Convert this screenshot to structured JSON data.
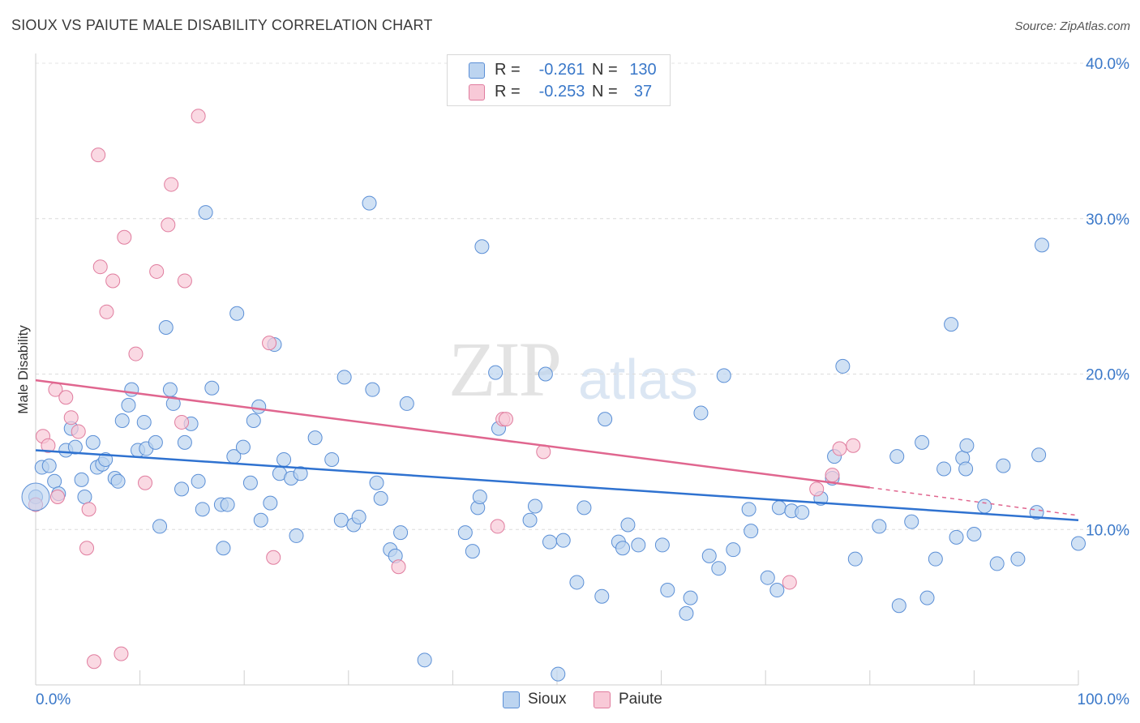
{
  "title": "SIOUX VS PAIUTE MALE DISABILITY CORRELATION CHART",
  "source": "Source: ZipAtlas.com",
  "watermark": {
    "zip": "ZIP",
    "atlas": "atlas"
  },
  "legend": {
    "rows": [
      {
        "r_label": "R =",
        "r_value": "-0.261",
        "n_label": "N =",
        "n_value": "130",
        "fill": "#bcd4f0",
        "stroke": "#5b8fd6"
      },
      {
        "r_label": "R =",
        "r_value": "-0.253",
        "n_label": "N =",
        "n_value": "37",
        "fill": "#f8c9d7",
        "stroke": "#e07c9e"
      }
    ]
  },
  "bottom_legend": [
    {
      "label": "Sioux",
      "fill": "#bcd4f0",
      "stroke": "#5b8fd6"
    },
    {
      "label": "Paiute",
      "fill": "#f8c9d7",
      "stroke": "#e07c9e"
    }
  ],
  "chart_data": {
    "type": "scatter",
    "title": "SIOUX VS PAIUTE MALE DISABILITY CORRELATION CHART",
    "xlabel": "",
    "ylabel": "Male Disability",
    "xlim": [
      0,
      100
    ],
    "ylim": [
      0,
      40
    ],
    "x_tick_labels": [
      "0.0%",
      "100.0%"
    ],
    "y_ticks": [
      10,
      20,
      30,
      40
    ],
    "y_tick_labels": [
      "10.0%",
      "20.0%",
      "30.0%",
      "40.0%"
    ],
    "grid": true,
    "series": [
      {
        "name": "Sioux",
        "color": "#5b8fd6",
        "fill": "#bcd4f0",
        "line_color": "#2f72d0",
        "trend": {
          "x0": 0,
          "y0": 15.1,
          "x1": 100,
          "y1": 10.6
        },
        "points": [
          [
            0.0,
            12.1
          ],
          [
            0.6,
            14.0
          ],
          [
            1.3,
            14.1
          ],
          [
            1.8,
            13.1
          ],
          [
            2.2,
            12.3
          ],
          [
            2.9,
            15.1
          ],
          [
            3.4,
            16.5
          ],
          [
            3.8,
            15.3
          ],
          [
            4.4,
            13.2
          ],
          [
            4.7,
            12.1
          ],
          [
            5.5,
            15.6
          ],
          [
            5.9,
            14.0
          ],
          [
            6.4,
            14.2
          ],
          [
            6.7,
            14.5
          ],
          [
            7.6,
            13.3
          ],
          [
            7.9,
            13.1
          ],
          [
            8.3,
            17.0
          ],
          [
            8.9,
            18.0
          ],
          [
            9.2,
            19.0
          ],
          [
            9.8,
            15.1
          ],
          [
            10.4,
            16.9
          ],
          [
            10.6,
            15.2
          ],
          [
            11.5,
            15.6
          ],
          [
            11.9,
            10.2
          ],
          [
            12.5,
            23.0
          ],
          [
            12.9,
            19.0
          ],
          [
            13.2,
            18.1
          ],
          [
            14.0,
            12.6
          ],
          [
            14.3,
            15.6
          ],
          [
            14.9,
            16.8
          ],
          [
            15.6,
            13.1
          ],
          [
            16.0,
            11.3
          ],
          [
            16.3,
            30.4
          ],
          [
            16.9,
            19.1
          ],
          [
            17.8,
            11.6
          ],
          [
            18.0,
            8.8
          ],
          [
            18.4,
            11.6
          ],
          [
            19.0,
            14.7
          ],
          [
            19.3,
            23.9
          ],
          [
            19.9,
            15.3
          ],
          [
            20.6,
            13.0
          ],
          [
            20.9,
            17.0
          ],
          [
            21.4,
            17.9
          ],
          [
            21.6,
            10.6
          ],
          [
            22.5,
            11.7
          ],
          [
            22.9,
            21.9
          ],
          [
            23.4,
            13.6
          ],
          [
            23.8,
            14.5
          ],
          [
            24.5,
            13.3
          ],
          [
            25.0,
            9.6
          ],
          [
            25.4,
            13.6
          ],
          [
            26.8,
            15.9
          ],
          [
            28.4,
            14.5
          ],
          [
            29.3,
            10.6
          ],
          [
            29.6,
            19.8
          ],
          [
            30.5,
            10.3
          ],
          [
            31.0,
            10.8
          ],
          [
            32.0,
            31.0
          ],
          [
            32.3,
            19.0
          ],
          [
            32.7,
            13.0
          ],
          [
            33.1,
            12.0
          ],
          [
            34.0,
            8.7
          ],
          [
            34.5,
            8.3
          ],
          [
            35.0,
            9.8
          ],
          [
            35.6,
            18.1
          ],
          [
            41.2,
            9.8
          ],
          [
            41.9,
            8.6
          ],
          [
            42.4,
            11.4
          ],
          [
            42.6,
            12.1
          ],
          [
            42.8,
            28.2
          ],
          [
            44.1,
            20.1
          ],
          [
            44.4,
            16.5
          ],
          [
            47.4,
            10.6
          ],
          [
            47.9,
            11.5
          ],
          [
            48.9,
            20.0
          ],
          [
            49.3,
            9.2
          ],
          [
            50.1,
            0.7
          ],
          [
            50.6,
            9.3
          ],
          [
            51.9,
            6.6
          ],
          [
            52.6,
            11.4
          ],
          [
            54.3,
            5.7
          ],
          [
            54.6,
            17.1
          ],
          [
            55.9,
            9.2
          ],
          [
            56.3,
            8.8
          ],
          [
            56.8,
            10.3
          ],
          [
            57.8,
            9.0
          ],
          [
            60.1,
            9.0
          ],
          [
            60.6,
            6.1
          ],
          [
            62.4,
            4.6
          ],
          [
            62.8,
            5.6
          ],
          [
            63.8,
            17.5
          ],
          [
            64.6,
            8.3
          ],
          [
            65.5,
            7.5
          ],
          [
            66.0,
            19.9
          ],
          [
            66.9,
            8.7
          ],
          [
            68.4,
            11.3
          ],
          [
            68.6,
            9.9
          ],
          [
            70.2,
            6.9
          ],
          [
            71.1,
            6.1
          ],
          [
            71.3,
            11.4
          ],
          [
            72.5,
            11.2
          ],
          [
            73.5,
            11.1
          ],
          [
            75.3,
            12.0
          ],
          [
            76.4,
            13.3
          ],
          [
            76.6,
            14.7
          ],
          [
            77.4,
            20.5
          ],
          [
            78.6,
            8.1
          ],
          [
            80.9,
            10.2
          ],
          [
            82.6,
            14.7
          ],
          [
            82.8,
            5.1
          ],
          [
            84.0,
            10.5
          ],
          [
            85.0,
            15.6
          ],
          [
            85.5,
            5.6
          ],
          [
            86.3,
            8.1
          ],
          [
            87.1,
            13.9
          ],
          [
            87.8,
            23.2
          ],
          [
            88.3,
            9.5
          ],
          [
            88.9,
            14.6
          ],
          [
            89.2,
            13.9
          ],
          [
            89.3,
            15.4
          ],
          [
            90.0,
            9.7
          ],
          [
            91.0,
            11.5
          ],
          [
            92.2,
            7.8
          ],
          [
            92.8,
            14.1
          ],
          [
            94.2,
            8.1
          ],
          [
            96.0,
            11.1
          ],
          [
            96.2,
            14.8
          ],
          [
            96.5,
            28.3
          ],
          [
            100.0,
            9.1
          ],
          [
            37.3,
            1.6
          ]
        ]
      },
      {
        "name": "Paiute",
        "color": "#e07c9e",
        "fill": "#f8c9d7",
        "line_color": "#e0668f",
        "trend": {
          "x0": 0,
          "y0": 19.6,
          "x1": 80,
          "y1": 12.7
        },
        "trend_dashed": {
          "x0": 80,
          "y0": 12.7,
          "x1": 100,
          "y1": 10.9
        },
        "points": [
          [
            0.0,
            11.6
          ],
          [
            0.7,
            16.0
          ],
          [
            1.2,
            15.4
          ],
          [
            1.9,
            19.0
          ],
          [
            2.1,
            12.1
          ],
          [
            2.9,
            18.5
          ],
          [
            3.4,
            17.2
          ],
          [
            4.1,
            16.3
          ],
          [
            4.9,
            8.8
          ],
          [
            5.1,
            11.3
          ],
          [
            5.6,
            1.5
          ],
          [
            6.0,
            34.1
          ],
          [
            6.2,
            26.9
          ],
          [
            6.8,
            24.0
          ],
          [
            7.4,
            26.0
          ],
          [
            8.2,
            2.0
          ],
          [
            8.5,
            28.8
          ],
          [
            9.6,
            21.3
          ],
          [
            10.5,
            13.0
          ],
          [
            11.6,
            26.6
          ],
          [
            12.7,
            29.6
          ],
          [
            13.0,
            32.2
          ],
          [
            14.0,
            16.9
          ],
          [
            14.3,
            26.0
          ],
          [
            15.6,
            36.6
          ],
          [
            22.4,
            22.0
          ],
          [
            22.8,
            8.2
          ],
          [
            34.8,
            7.6
          ],
          [
            44.3,
            10.2
          ],
          [
            44.8,
            17.1
          ],
          [
            45.1,
            17.1
          ],
          [
            48.7,
            15.0
          ],
          [
            72.3,
            6.6
          ],
          [
            74.9,
            12.6
          ],
          [
            76.4,
            13.5
          ],
          [
            77.1,
            15.2
          ],
          [
            78.4,
            15.4
          ]
        ]
      }
    ]
  }
}
